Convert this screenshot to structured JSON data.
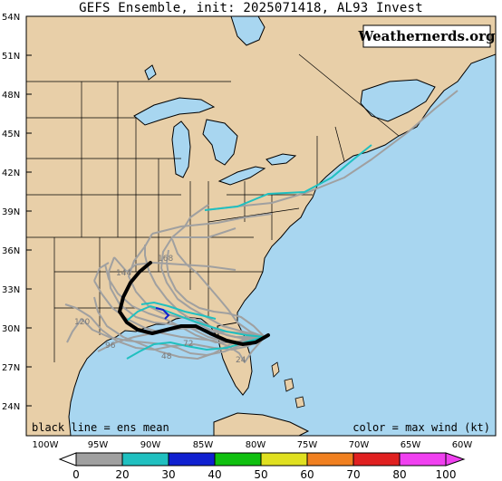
{
  "title": "GEFS Ensemble, init: 2025071418, AL93 Invest",
  "watermark": "Weathernerds.org",
  "legend_left": "black line = ens mean",
  "legend_right": "color = max wind (kt)",
  "lat_labels": [
    "54N",
    "51N",
    "48N",
    "45N",
    "42N",
    "39N",
    "36N",
    "33N",
    "30N",
    "27N",
    "24N"
  ],
  "lon_labels": [
    "100W",
    "95W",
    "90W",
    "85W",
    "80W",
    "75W",
    "70W",
    "65W",
    "60W"
  ],
  "colorbar": {
    "ticks": [
      "0",
      "20",
      "30",
      "40",
      "50",
      "60",
      "70",
      "80",
      "100"
    ],
    "colors": [
      "#a0a0a0",
      "#20c0c0",
      "#1020d0",
      "#10c010",
      "#e0e020",
      "#f08020",
      "#e02020",
      "#f040f0"
    ]
  },
  "forecast_hour_labels": [
    "168",
    "144",
    "120",
    "96",
    "72",
    "48",
    "24"
  ],
  "colors": {
    "land": "#e8cfa8",
    "water": "#a8d6f0",
    "ens_mean": "#000000",
    "member_gray": "#a0a0a0",
    "member_cyan": "#20c0c0",
    "member_blue": "#1020d0"
  }
}
